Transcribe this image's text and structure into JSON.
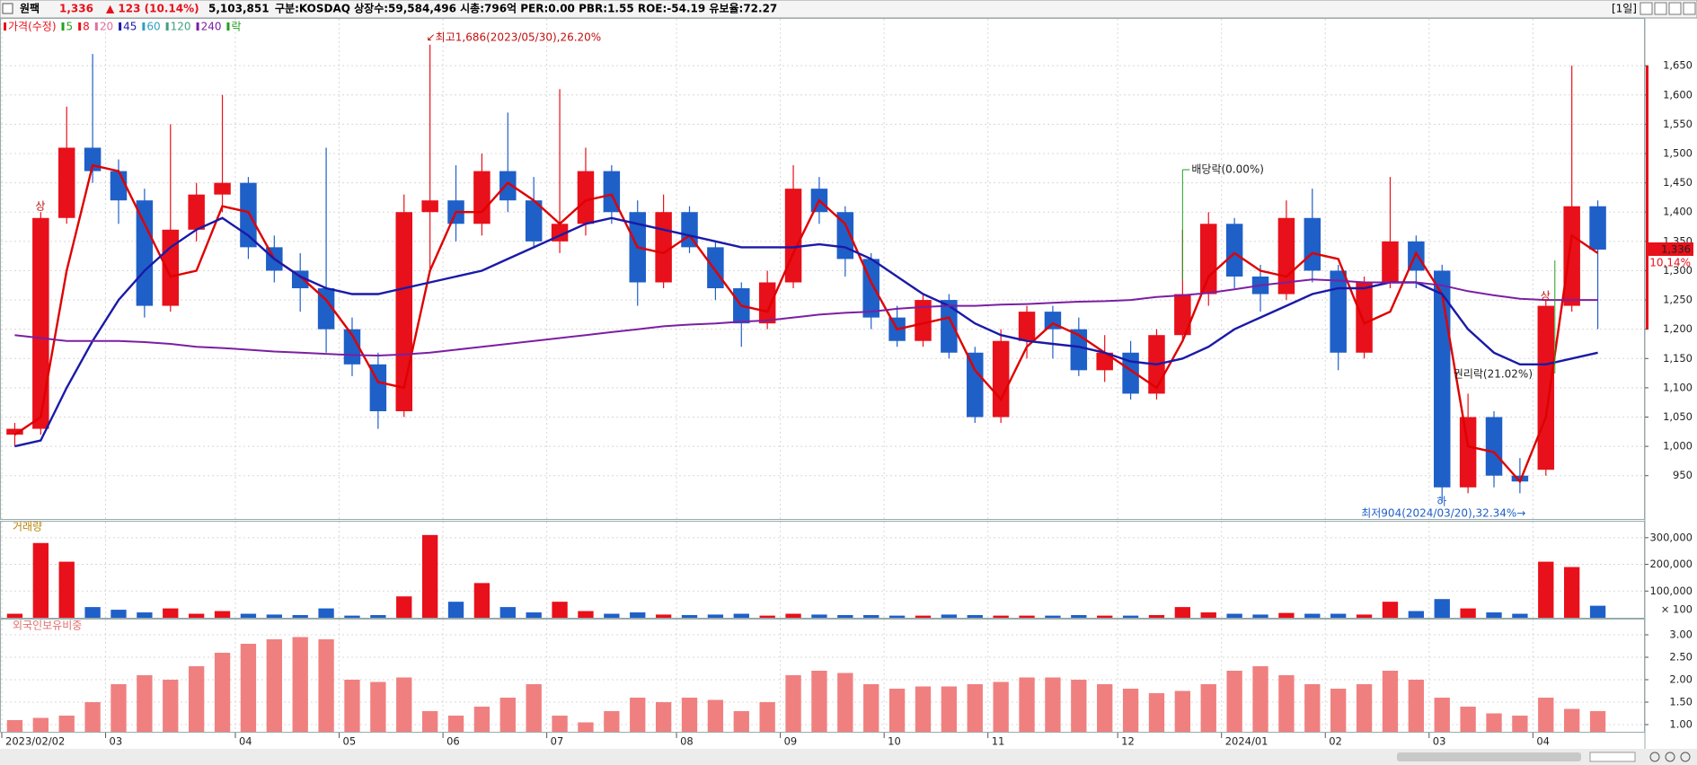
{
  "header": {
    "name": "원팩",
    "price": "1,336",
    "change": "▲ 123 (10.14%)",
    "volume": "5,103,851",
    "info": "구분:KOSDAQ 상장수:59,584,496 시총:796억 PER:0.00 PBR:1.55 ROE:-54.19 유보율:72.27",
    "period": "[1일]"
  },
  "chart_data": [
    {
      "type": "candlestick",
      "up_color": "#e8101a",
      "down_color": "#1f5fc8",
      "grid": true,
      "legend": [
        {
          "label": "가격(수정)",
          "color": "#e8101a"
        },
        {
          "label": "5",
          "color": "#22a022"
        },
        {
          "label": "8",
          "color": "#e8101a"
        },
        {
          "label": "20",
          "color": "#e070a0"
        },
        {
          "label": "45",
          "color": "#1a1aa8"
        },
        {
          "label": "60",
          "color": "#30a0c0"
        },
        {
          "label": "120",
          "color": "#40a080"
        },
        {
          "label": "240",
          "color": "#7b1fa2"
        },
        {
          "label": "락",
          "color": "#22a022"
        }
      ],
      "categories": [
        "2023/02/02",
        null,
        null,
        null,
        "03",
        null,
        null,
        null,
        null,
        "04",
        null,
        null,
        null,
        "05",
        null,
        null,
        null,
        "06",
        null,
        null,
        null,
        "07",
        null,
        null,
        null,
        null,
        "08",
        null,
        null,
        null,
        "09",
        null,
        null,
        null,
        "10",
        null,
        null,
        null,
        "11",
        null,
        null,
        null,
        null,
        "12",
        null,
        null,
        null,
        "2024/01",
        null,
        null,
        null,
        "02",
        null,
        null,
        null,
        "03",
        null,
        null,
        null,
        "04",
        null,
        null
      ],
      "open": [
        1020,
        1030,
        1390,
        1510,
        1470,
        1420,
        1240,
        1370,
        1430,
        1450,
        1340,
        1300,
        1270,
        1200,
        1140,
        1060,
        1400,
        1420,
        1380,
        1470,
        1420,
        1350,
        1380,
        1470,
        1400,
        1280,
        1400,
        1340,
        1270,
        1210,
        1280,
        1440,
        1400,
        1320,
        1220,
        1180,
        1250,
        1160,
        1050,
        1180,
        1230,
        1200,
        1130,
        1160,
        1090,
        1190,
        1260,
        1380,
        1290,
        1260,
        1390,
        1300,
        1160,
        1280,
        1350,
        1300,
        930,
        1050,
        950,
        960,
        1240,
        1410
      ],
      "high": [
        1040,
        1400,
        1580,
        1670,
        1490,
        1440,
        1550,
        1450,
        1600,
        1460,
        1360,
        1330,
        1510,
        1220,
        1160,
        1430,
        1686,
        1480,
        1500,
        1570,
        1460,
        1610,
        1510,
        1480,
        1420,
        1430,
        1410,
        1350,
        1280,
        1300,
        1480,
        1460,
        1410,
        1330,
        1240,
        1260,
        1260,
        1170,
        1200,
        1240,
        1240,
        1220,
        1190,
        1180,
        1200,
        1370,
        1400,
        1390,
        1310,
        1420,
        1440,
        1310,
        1290,
        1460,
        1360,
        1310,
        1090,
        1060,
        980,
        1250,
        1650,
        1420
      ],
      "low": [
        1000,
        1020,
        1380,
        1450,
        1380,
        1220,
        1230,
        1350,
        1400,
        1320,
        1280,
        1230,
        1160,
        1120,
        1030,
        1050,
        1300,
        1350,
        1360,
        1400,
        1340,
        1330,
        1360,
        1380,
        1240,
        1270,
        1330,
        1250,
        1170,
        1200,
        1270,
        1380,
        1290,
        1200,
        1170,
        1170,
        1150,
        1040,
        1040,
        1150,
        1150,
        1120,
        1110,
        1080,
        1080,
        1180,
        1240,
        1270,
        1230,
        1250,
        1280,
        1130,
        1150,
        1270,
        1270,
        904,
        920,
        930,
        920,
        950,
        1230,
        1200
      ],
      "close": [
        1030,
        1390,
        1510,
        1470,
        1420,
        1240,
        1370,
        1430,
        1450,
        1340,
        1300,
        1270,
        1200,
        1140,
        1060,
        1400,
        1420,
        1380,
        1470,
        1420,
        1350,
        1380,
        1470,
        1400,
        1280,
        1400,
        1340,
        1270,
        1210,
        1280,
        1440,
        1400,
        1320,
        1220,
        1180,
        1250,
        1160,
        1050,
        1180,
        1230,
        1200,
        1130,
        1160,
        1090,
        1190,
        1260,
        1380,
        1290,
        1260,
        1390,
        1300,
        1160,
        1280,
        1350,
        1300,
        930,
        1050,
        950,
        940,
        1240,
        1410,
        1336
      ],
      "series": [
        {
          "name": "5",
          "color": "#e00000",
          "values": [
            1020,
            1050,
            1300,
            1480,
            1470,
            1380,
            1290,
            1300,
            1410,
            1400,
            1320,
            1290,
            1250,
            1190,
            1110,
            1100,
            1300,
            1400,
            1400,
            1450,
            1420,
            1380,
            1420,
            1430,
            1340,
            1330,
            1360,
            1300,
            1240,
            1230,
            1330,
            1420,
            1380,
            1280,
            1200,
            1210,
            1220,
            1130,
            1080,
            1170,
            1210,
            1190,
            1160,
            1130,
            1100,
            1180,
            1290,
            1330,
            1300,
            1290,
            1330,
            1320,
            1210,
            1230,
            1330,
            1260,
            1000,
            990,
            940,
            1050,
            1360,
            1330
          ]
        },
        {
          "name": "45",
          "color": "#1a1aa8",
          "values": [
            1000,
            1010,
            1100,
            1180,
            1250,
            1300,
            1340,
            1370,
            1390,
            1360,
            1320,
            1290,
            1270,
            1260,
            1260,
            1270,
            1280,
            1290,
            1300,
            1320,
            1340,
            1360,
            1380,
            1390,
            1380,
            1370,
            1360,
            1350,
            1340,
            1340,
            1340,
            1345,
            1340,
            1320,
            1290,
            1260,
            1240,
            1210,
            1190,
            1180,
            1175,
            1170,
            1160,
            1145,
            1140,
            1150,
            1170,
            1200,
            1220,
            1240,
            1260,
            1270,
            1270,
            1280,
            1280,
            1260,
            1200,
            1160,
            1140,
            1140,
            1150,
            1160
          ]
        },
        {
          "name": "240",
          "color": "#7b1fa2",
          "values": [
            1190,
            1185,
            1180,
            1180,
            1180,
            1178,
            1175,
            1170,
            1168,
            1165,
            1162,
            1160,
            1158,
            1156,
            1155,
            1157,
            1160,
            1165,
            1170,
            1175,
            1180,
            1185,
            1190,
            1195,
            1200,
            1205,
            1208,
            1210,
            1213,
            1215,
            1220,
            1225,
            1228,
            1230,
            1235,
            1238,
            1240,
            1240,
            1242,
            1243,
            1245,
            1247,
            1248,
            1250,
            1255,
            1258,
            1262,
            1268,
            1275,
            1280,
            1285,
            1283,
            1280,
            1280,
            1280,
            1275,
            1265,
            1258,
            1252,
            1250,
            1250,
            1250
          ]
        }
      ],
      "ylim": [
        876,
        1730
      ],
      "yticks": [
        950,
        {
          "value": 1000,
          "label": "1,000"
        },
        {
          "value": 1050,
          "label": "1,050"
        },
        {
          "value": 1100,
          "label": "1,100"
        },
        {
          "value": 1150,
          "label": "1,150"
        },
        {
          "value": 1200,
          "label": "1,200"
        },
        {
          "value": 1250,
          "label": "1,250"
        },
        {
          "value": 1300,
          "label": "1,300"
        },
        {
          "value": 1350,
          "label": "1,350"
        },
        {
          "value": 1400,
          "label": "1,400"
        },
        {
          "value": 1450,
          "label": "1,450"
        },
        {
          "value": 1500,
          "label": "1,500"
        },
        {
          "value": 1550,
          "label": "1,550"
        },
        {
          "value": 1600,
          "label": "1,600"
        },
        {
          "value": 1650,
          "label": "1,650"
        }
      ],
      "last_change": "10.14%",
      "annotations": {
        "high": "↙최고1,686(2023/05/30),26.20%",
        "low": "최저904(2024/03/20),32.34%→",
        "dividend": "배당락(0.00%)",
        "rights": "권리락(21.02%)",
        "limit_up_1": "상",
        "limit_up_2": "상",
        "limit_down": "하"
      }
    },
    {
      "type": "bar",
      "title": "거래량",
      "grid": true,
      "values": [
        15000,
        280000,
        210000,
        40000,
        30000,
        20000,
        35000,
        15000,
        25000,
        15000,
        12000,
        10000,
        35000,
        8000,
        10000,
        80000,
        310000,
        60000,
        130000,
        40000,
        20000,
        60000,
        25000,
        15000,
        20000,
        12000,
        10000,
        12000,
        15000,
        8000,
        15000,
        12000,
        10000,
        10000,
        8000,
        8000,
        12000,
        10000,
        8000,
        8000,
        8000,
        10000,
        8000,
        8000,
        10000,
        40000,
        20000,
        15000,
        12000,
        18000,
        15000,
        15000,
        12000,
        60000,
        25000,
        70000,
        35000,
        20000,
        15000,
        210000,
        190000,
        45000
      ],
      "ylim": [
        0,
        360000
      ],
      "yticks": [
        {
          "value": 100000,
          "label": "100,000"
        },
        {
          "value": 200000,
          "label": "200,000"
        },
        {
          "value": 300000,
          "label": "300,000"
        }
      ],
      "unit_label": "× 100"
    },
    {
      "type": "bar",
      "title": "외국인보유비중",
      "color": "#f08080",
      "grid": true,
      "values": [
        1.1,
        1.15,
        1.2,
        1.5,
        1.9,
        2.1,
        2.0,
        2.3,
        2.6,
        2.8,
        2.9,
        2.95,
        2.9,
        2.0,
        1.95,
        2.05,
        1.3,
        1.2,
        1.4,
        1.6,
        1.9,
        1.2,
        1.05,
        1.3,
        1.6,
        1.5,
        1.6,
        1.55,
        1.3,
        1.5,
        2.1,
        2.2,
        2.15,
        1.9,
        1.8,
        1.85,
        1.85,
        1.9,
        1.95,
        2.05,
        2.05,
        2.0,
        1.9,
        1.8,
        1.7,
        1.75,
        1.9,
        2.2,
        2.3,
        2.1,
        1.9,
        1.8,
        1.9,
        2.2,
        2.0,
        1.6,
        1.4,
        1.25,
        1.2,
        1.6,
        1.35,
        1.3
      ],
      "ylim": [
        0.84,
        3.34
      ],
      "yticks": [
        {
          "value": 1,
          "label": "1.00"
        },
        {
          "value": 1.5,
          "label": "1.50"
        },
        {
          "value": 2,
          "label": "2.00"
        },
        {
          "value": 2.5,
          "label": "2.50"
        },
        {
          "value": 3,
          "label": "3.00"
        }
      ]
    }
  ]
}
